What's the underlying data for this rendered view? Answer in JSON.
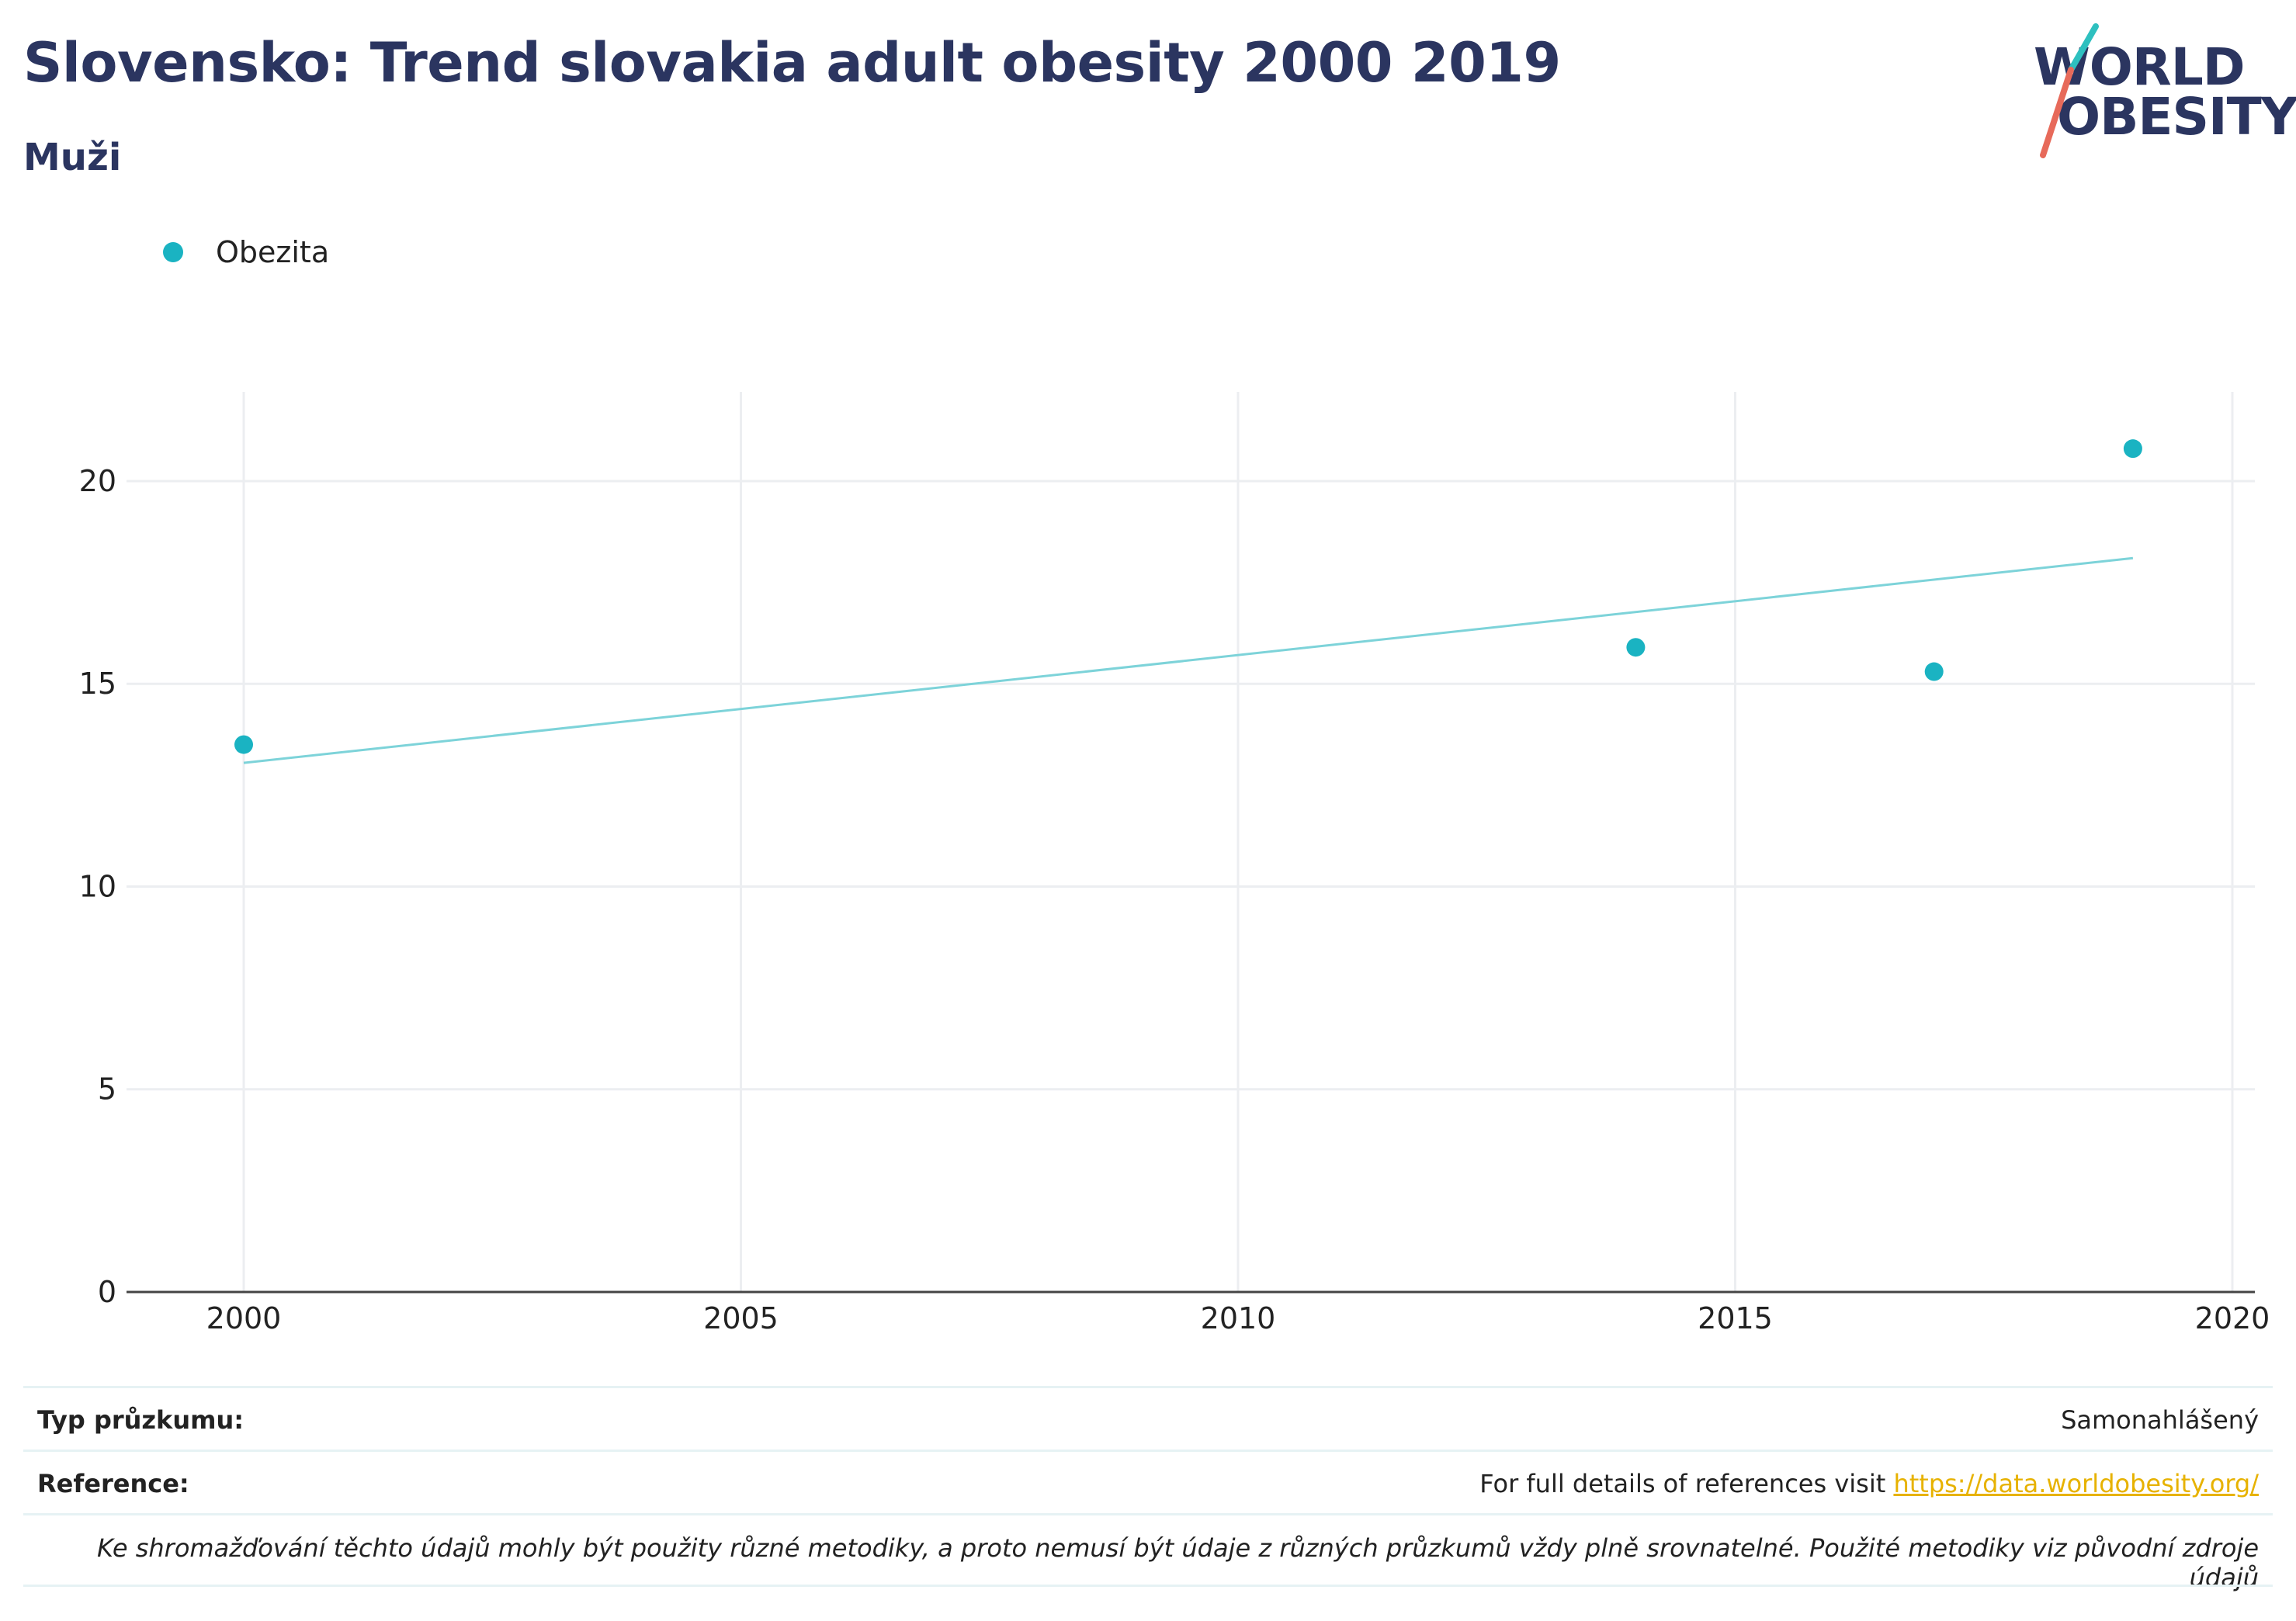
{
  "header": {
    "title": "Slovensko: Trend slovakia adult obesity 2000 2019",
    "subtitle": "Muži"
  },
  "logo": {
    "line1": "WORLD",
    "line2": "OBESITY"
  },
  "legend": {
    "label": "Obezita"
  },
  "colors": {
    "series": "#1ab3c2",
    "trend": "#7dd3d9",
    "title": "#2b3560",
    "link": "#e7b200"
  },
  "chart_data": {
    "type": "scatter",
    "title": "Slovensko: Trend slovakia adult obesity 2000 2019",
    "subtitle": "Muži",
    "xlabel": "",
    "ylabel": "",
    "xlim": [
      1999,
      2020.4
    ],
    "ylim": [
      0,
      22.2
    ],
    "xticks": [
      2000,
      2005,
      2010,
      2015,
      2020
    ],
    "yticks": [
      0,
      5,
      10,
      15,
      20
    ],
    "grid": true,
    "legend_position": "top-left",
    "series": [
      {
        "name": "Obezita",
        "x": [
          2000,
          2014,
          2017,
          2019
        ],
        "y": [
          13.5,
          15.9,
          15.3,
          20.8
        ]
      }
    ],
    "trendline": {
      "x": [
        2000,
        2019
      ],
      "y": [
        13.05,
        18.1
      ]
    }
  },
  "footer": {
    "survey_label": "Typ průzkumu:",
    "survey_value": "Samonahlášený",
    "reference_label": "Reference:",
    "reference_text": "For full details of references visit ",
    "reference_link": "https://data.worldobesity.org/",
    "note": "Ke shromažďování těchto údajů mohly být použity různé metodiky, a proto nemusí být údaje z různých průzkumů vždy plně srovnatelné. Použité metodiky viz původní zdroje údajů"
  }
}
